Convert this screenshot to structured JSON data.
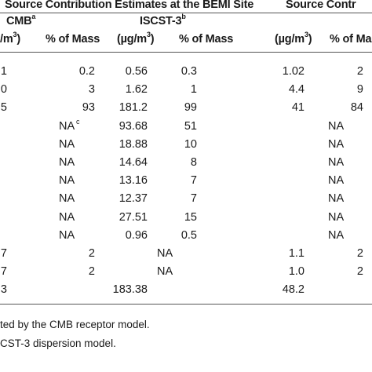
{
  "header": {
    "group_main": "Source Contribution Estimates at the BEMI Site",
    "group_right": "Source Contr",
    "cmb": "CMB",
    "cmb_sup": "a",
    "iscst": "ISCST-3",
    "iscst_sup": "b",
    "col_ugm3_left": "/m",
    "col_ugm3_left_sup": "3",
    "col_ugm3_left_close": ")",
    "col_pct_mass_1": "% of Mass",
    "col_iscst_ugm3": "(µg/m",
    "col_iscst_ugm3_sup": "3",
    "col_iscst_ugm3_close": ")",
    "col_pct_mass_2": "% of Mass",
    "col_right_ugm3": "(µg/m",
    "col_right_ugm3_sup": "3",
    "col_right_ugm3_close": ")",
    "col_right_pct": "% of Ma"
  },
  "rows": [
    {
      "c0": "1",
      "c1": "0.2",
      "c2": "0.56",
      "c3": "0.3",
      "c4": "1.02",
      "c5": "2"
    },
    {
      "c0": "0",
      "c1": "3",
      "c2": "1.62",
      "c3": "1",
      "c4": "4.4",
      "c5": "9"
    },
    {
      "c0": "5",
      "c1": "93",
      "c2": "181.2",
      "c3": "99",
      "c4": "41",
      "c5": "84"
    },
    {
      "c0": "",
      "c1": "NA",
      "c1sup": "c",
      "c2": "93.68",
      "c3": "51",
      "c4": "NA",
      "c5": ""
    },
    {
      "c0": "",
      "c1": "NA",
      "c2": "18.88",
      "c3": "10",
      "c4": "NA",
      "c5": ""
    },
    {
      "c0": "",
      "c1": "NA",
      "c2": "14.64",
      "c3": "8",
      "c4": "NA",
      "c5": ""
    },
    {
      "c0": "",
      "c1": "NA",
      "c2": "13.16",
      "c3": "7",
      "c4": "NA",
      "c5": ""
    },
    {
      "c0": "",
      "c1": "NA",
      "c2": "12.37",
      "c3": "7",
      "c4": "NA",
      "c5": ""
    },
    {
      "c0": "",
      "c1": "NA",
      "c2": "27.51",
      "c3": "15",
      "c4": "NA",
      "c5": ""
    },
    {
      "c0": "",
      "c1": "NA",
      "c2": "0.96",
      "c3": "0.5",
      "c4": "NA",
      "c5": ""
    },
    {
      "c0": "7",
      "c1": "2",
      "c2": "NA",
      "c3": "",
      "c4": "1.1",
      "c5": "2"
    },
    {
      "c0": "7",
      "c1": "2",
      "c2": "NA",
      "c3": "",
      "c4": "1.0",
      "c5": "2"
    },
    {
      "c0": ".3",
      "c1": "",
      "c2": "183.38",
      "c3": "",
      "c4": "48.2",
      "c5": ""
    }
  ],
  "footnotes": {
    "a": "ted by the CMB receptor model.",
    "b": "CST-3 dispersion model."
  }
}
